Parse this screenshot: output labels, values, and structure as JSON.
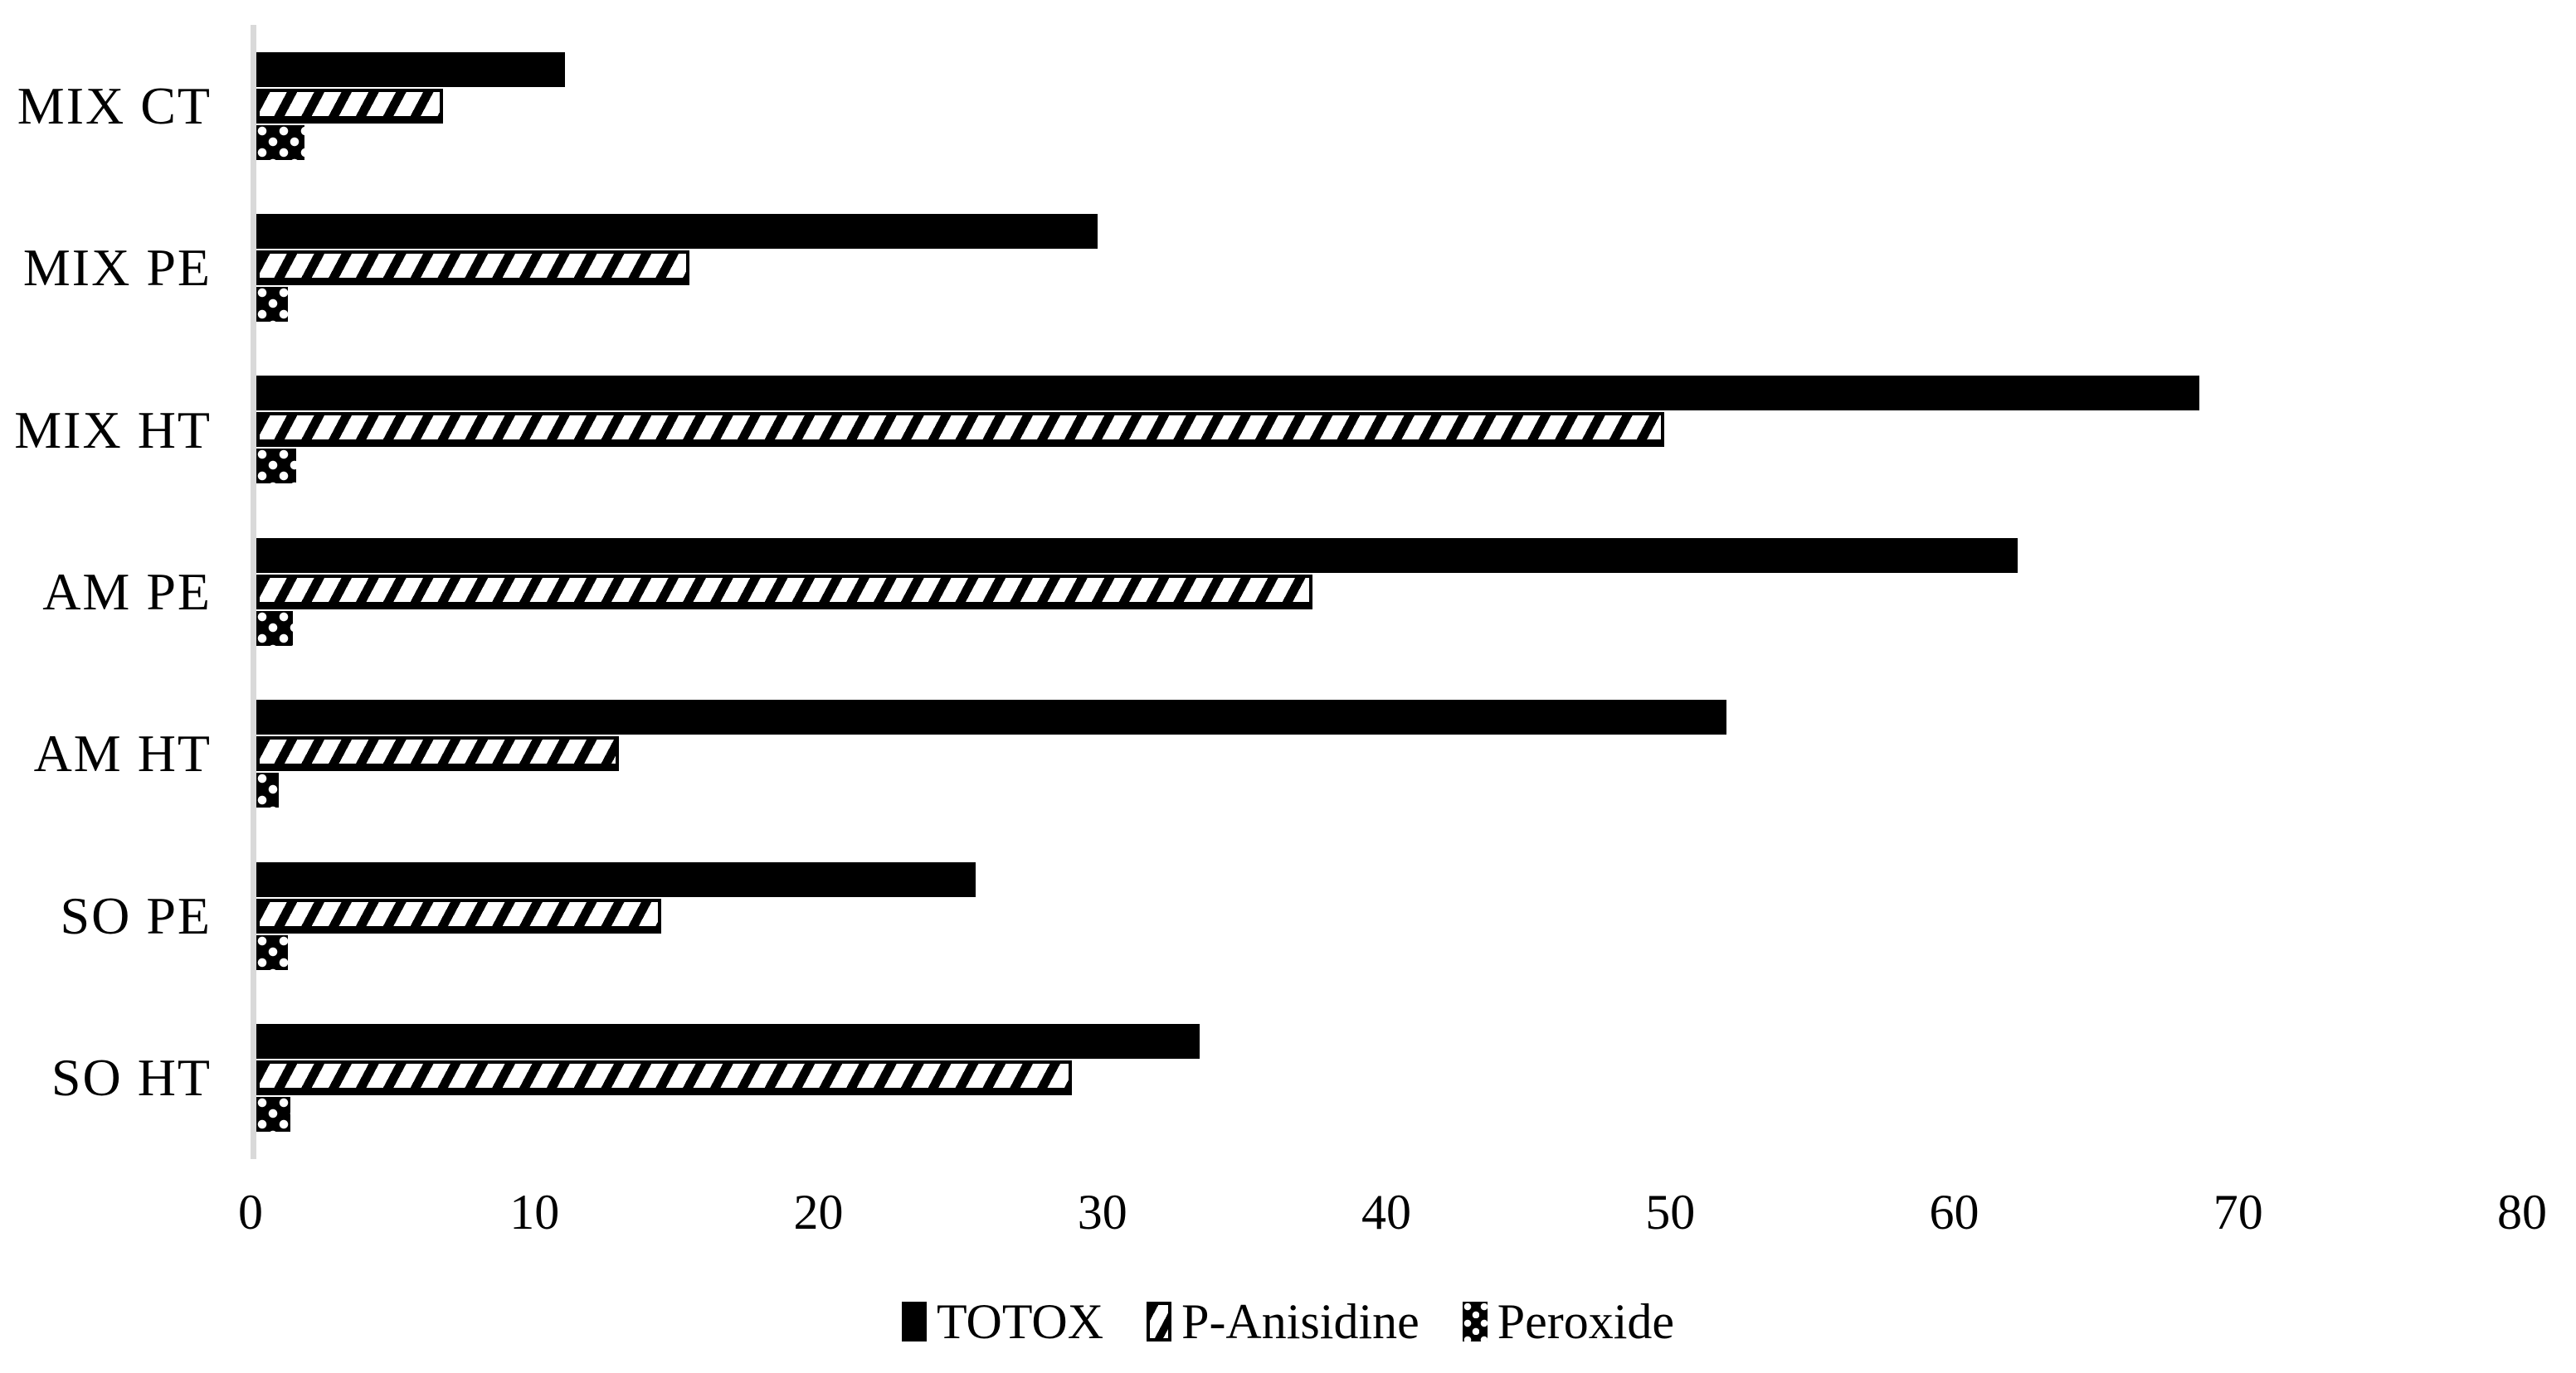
{
  "chart_data": {
    "type": "bar",
    "orientation": "horizontal",
    "title": "",
    "xlabel": "",
    "ylabel": "",
    "categories": [
      "MIX CT",
      "MIX PE",
      "MIX HT",
      "AM PE",
      "AM HT",
      "SO PE",
      "SO HT"
    ],
    "series": [
      {
        "name": "TOTOX",
        "pattern": "solid-black",
        "values": [
          10.9,
          29.7,
          68.6,
          62.2,
          51.9,
          25.4,
          33.3
        ]
      },
      {
        "name": "P-Anisidine",
        "pattern": "diagonal-stripes",
        "values": [
          6.6,
          15.3,
          49.7,
          37.3,
          12.8,
          14.3,
          28.8
        ]
      },
      {
        "name": "Peroxide",
        "pattern": "white-dots-on-black",
        "values": [
          1.7,
          1.1,
          1.4,
          1.3,
          0.8,
          1.1,
          1.2
        ]
      }
    ],
    "x_axis": {
      "min": 0,
      "max": 80,
      "tick_interval": 10,
      "ticks": [
        0,
        10,
        20,
        30,
        40,
        50,
        60,
        70,
        80
      ]
    },
    "grid": "off",
    "legend_position": "bottom",
    "colors": {
      "bar": "#000000",
      "axis_line": "#d9d9d9",
      "background": "#ffffff",
      "text": "#000000"
    }
  }
}
